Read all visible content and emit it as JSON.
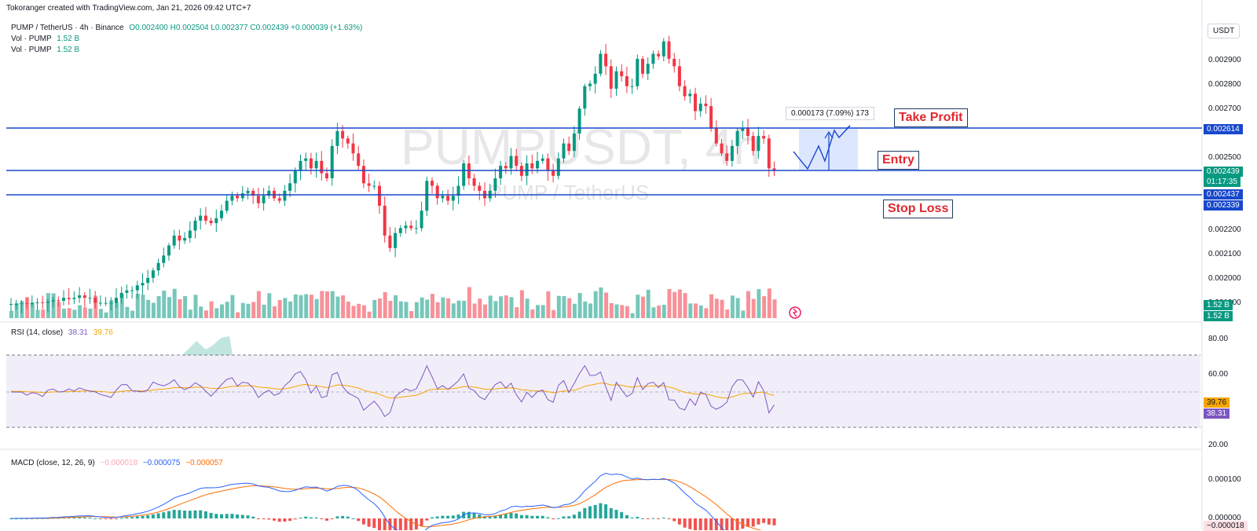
{
  "header": {
    "credit": "Tokoranger created with TradingView.com, Jan 21, 2026 09:42 UTC+7"
  },
  "legend": {
    "symbol": "PUMP / TetherUS · 4h · Binance",
    "ohlc": "O0.002400 H0.002504 L0.002377 C0.002439 +0.000039 (+1.63%)",
    "vol1_label": "Vol · PUMP",
    "vol1_value": "1.52 B",
    "vol2_label": "Vol · PUMP",
    "vol2_value": "1.52 B"
  },
  "watermark": {
    "ticker": "PUMPUSDT, 4h",
    "name": "PUMP / TetherUS"
  },
  "currency_button": "USDT",
  "annotations": {
    "take_profit": "Take Profit",
    "entry": "Entry",
    "stop_loss": "Stop Loss",
    "measure": "0.000173 (7.09%) 173"
  },
  "price_tags": {
    "take_profit": "0.002614",
    "current": "0.002439",
    "countdown": "01:17:35",
    "entry": "0.002437",
    "stop_loss": "0.002339",
    "vol_a": "1.52 B",
    "vol_b": "1.52 B"
  },
  "rsi_legend": {
    "label": "RSI (14, close)",
    "rsi": "38.31",
    "ma": "39.76"
  },
  "rsi_tags": {
    "ma": "39.76",
    "rsi": "38.31"
  },
  "macd_legend": {
    "label": "MACD (close, 12, 26, 9)",
    "hist": "−0.000018",
    "macd": "−0.000075",
    "signal": "−0.000057"
  },
  "macd_tags": {
    "hist": "−0.000018"
  },
  "colors": {
    "up": "#089981",
    "down": "#f23645",
    "line": "#1848cc",
    "rsi": "#7e57c2",
    "ma": "#f7a600",
    "macd": "#2962ff",
    "signal": "#ff6d00"
  },
  "chart_data": {
    "type": "candlestick",
    "title": "PUMP / TetherUS · 4h · Binance",
    "price_axis": {
      "ticks": [
        "0.002900",
        "0.002800",
        "0.002700",
        "0.002500",
        "0.002200",
        "0.002100",
        "0.002000",
        "0.001900"
      ],
      "range": [
        0.00188,
        0.003
      ]
    },
    "levels": {
      "take_profit": 0.002614,
      "entry": 0.002437,
      "stop_loss": 0.002339
    },
    "candles_close": [
      0.001905,
      0.001905,
      0.001908,
      0.001905,
      0.00191,
      0.001912,
      0.00191,
      0.001915,
      0.00192,
      0.001918,
      0.00193,
      0.001925,
      0.00193,
      0.00194,
      0.00193,
      0.00193,
      0.00191,
      0.00191,
      0.00191,
      0.00191,
      0.00193,
      0.00195,
      0.00196,
      0.00196,
      0.00198,
      0.00199,
      0.00201,
      0.00204,
      0.00207,
      0.0021,
      0.00214,
      0.00218,
      0.00216,
      0.00217,
      0.0022,
      0.00224,
      0.00226,
      0.00224,
      0.00223,
      0.00225,
      0.00228,
      0.00232,
      0.00234,
      0.00233,
      0.00235,
      0.00236,
      0.00234,
      0.00231,
      0.00234,
      0.00236,
      0.00233,
      0.00232,
      0.00236,
      0.00239,
      0.00244,
      0.00248,
      0.00249,
      0.00245,
      0.00248,
      0.00243,
      0.00241,
      0.00254,
      0.0026,
      0.00257,
      0.00255,
      0.00251,
      0.00246,
      0.00239,
      0.00238,
      0.00238,
      0.0023,
      0.00218,
      0.00213,
      0.00219,
      0.00221,
      0.00222,
      0.00221,
      0.00221,
      0.00228,
      0.0024,
      0.00238,
      0.00233,
      0.00234,
      0.00232,
      0.00234,
      0.00238,
      0.00247,
      0.00241,
      0.00238,
      0.00236,
      0.00233,
      0.00236,
      0.00241,
      0.00246,
      0.00245,
      0.0025,
      0.00246,
      0.00242,
      0.00247,
      0.00245,
      0.00248,
      0.00249,
      0.00244,
      0.00242,
      0.00249,
      0.00255,
      0.00252,
      0.00259,
      0.00269,
      0.00278,
      0.00279,
      0.00283,
      0.00291,
      0.00286,
      0.00277,
      0.00284,
      0.00282,
      0.00278,
      0.00278,
      0.00289,
      0.00283,
      0.00287,
      0.00291,
      0.0029,
      0.00296,
      0.00289,
      0.00286,
      0.00278,
      0.00274,
      0.00275,
      0.00268,
      0.00271,
      0.0027,
      0.00261,
      0.00255,
      0.00251,
      0.00248,
      0.00254,
      0.0026,
      0.00261,
      0.00258,
      0.00252,
      0.00258,
      0.00257,
      0.00245,
      0.00244
    ]
  }
}
